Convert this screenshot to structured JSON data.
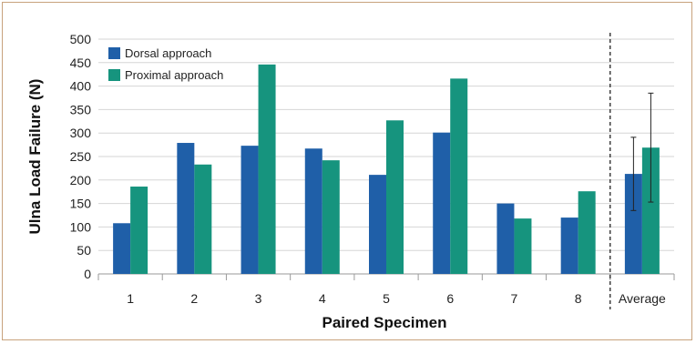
{
  "chart_data": {
    "type": "bar",
    "xlabel": "Paired Specimen",
    "ylabel": "Ulna Load Failure (N)",
    "categories": [
      "1",
      "2",
      "3",
      "4",
      "5",
      "6",
      "7",
      "8",
      "Average"
    ],
    "ylim": [
      0,
      500
    ],
    "yticks": [
      0,
      50,
      100,
      150,
      200,
      250,
      300,
      350,
      400,
      450,
      500
    ],
    "grid": true,
    "legend_position": "top-left",
    "series": [
      {
        "name": "Dorsal approach",
        "color": "#1f5fa8",
        "values": [
          108,
          279,
          273,
          267,
          211,
          301,
          150,
          120,
          213
        ],
        "error": [
          null,
          null,
          null,
          null,
          null,
          null,
          null,
          null,
          78
        ]
      },
      {
        "name": "Proximal approach",
        "color": "#16947e",
        "values": [
          186,
          233,
          446,
          242,
          327,
          416,
          118,
          176,
          269
        ],
        "error": [
          null,
          null,
          null,
          null,
          null,
          null,
          null,
          null,
          116
        ]
      }
    ],
    "annotations": [
      "dashed vertical separator before Average"
    ]
  }
}
